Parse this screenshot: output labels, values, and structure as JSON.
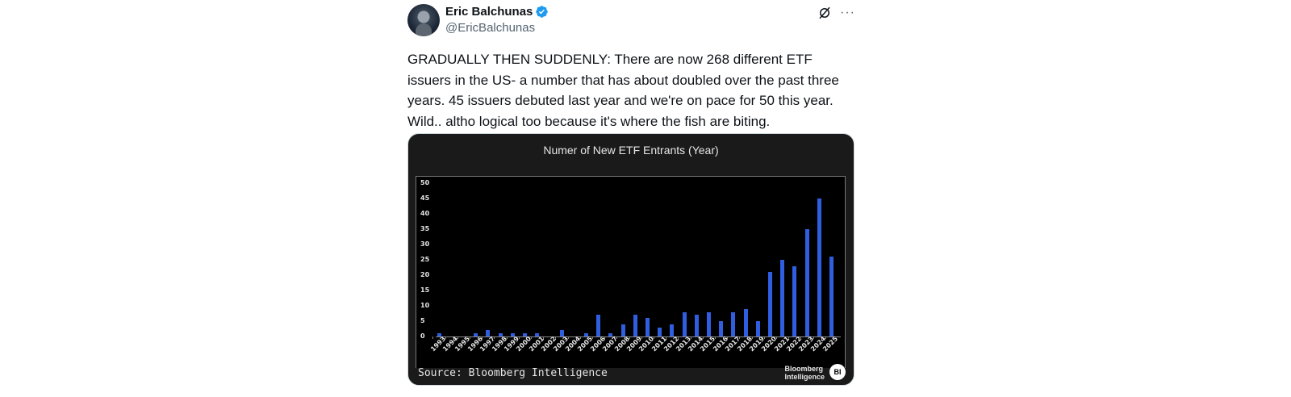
{
  "tweet": {
    "author": {
      "name": "Eric Balchunas",
      "handle": "@EricBalchunas",
      "verified": true,
      "verified_color": "#1d9bf0"
    },
    "actions": {
      "grok_icon": "grok-icon",
      "more_icon": "more-icon",
      "more_label": "···"
    },
    "text": "GRADUALLY THEN SUDDENLY: There are now 268 different ETF issuers in the US- a number that has about doubled over the past three years. 45 issuers debuted last year and we're on pace for 50 this year. Wild.. altho logical too because it's where the fish are biting.",
    "media": {
      "source": "Source: Bloomberg Intelligence",
      "logo_line1": "Bloomberg",
      "logo_line2": "Intelligence",
      "badge": "BI"
    }
  },
  "chart_data": {
    "type": "bar",
    "title": "Numer of New ETF Entrants (Year)",
    "xlabel": "",
    "ylabel": "",
    "ylim": [
      0,
      50
    ],
    "yticks": [
      0,
      5,
      10,
      15,
      20,
      25,
      30,
      35,
      40,
      45,
      50
    ],
    "grid": false,
    "bar_color": "#2f5ee0",
    "categories": [
      "1993",
      "1994",
      "1995",
      "1996",
      "1997",
      "1998",
      "1999",
      "2000",
      "2001",
      "2002",
      "2003",
      "2004",
      "2005",
      "2006",
      "2007",
      "2008",
      "2009",
      "2010",
      "2011",
      "2012",
      "2013",
      "2014",
      "2015",
      "2016",
      "2017",
      "2018",
      "2019",
      "2020",
      "2021",
      "2022",
      "2023",
      "2024",
      "2025"
    ],
    "values": [
      1,
      0,
      0,
      1,
      2,
      1,
      1,
      1,
      1,
      0,
      2,
      0,
      1,
      7,
      1,
      4,
      7,
      6,
      3,
      4,
      8,
      7,
      8,
      5,
      8,
      9,
      5,
      21,
      25,
      23,
      35,
      45,
      26
    ]
  }
}
